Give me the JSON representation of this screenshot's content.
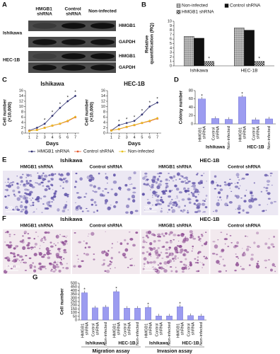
{
  "panel_labels": [
    "A",
    "B",
    "C",
    "D",
    "E",
    "F",
    "G"
  ],
  "blot": {
    "columns": [
      "HMGB1 shRNA",
      "Control shRNA",
      "Non-infected"
    ],
    "rows": [
      {
        "cell_line": "Ishikawa",
        "bands": [
          "HMGB1",
          "GAPDH"
        ]
      },
      {
        "cell_line": "HEC-1B",
        "bands": [
          "HMGB1",
          "GAPDH"
        ]
      }
    ]
  },
  "chart_data": [
    {
      "type": "bar",
      "ylabel": "Relative quantification (RQ)",
      "categories": [
        "Ishikawa",
        "HEC-1B"
      ],
      "series": [
        {
          "name": "Non-infected",
          "color": "#9a9a9a",
          "pattern": "grid",
          "values": [
            6.6,
            8.5
          ]
        },
        {
          "name": "Control shRNA",
          "color": "#111111",
          "values": [
            6.2,
            8.0
          ]
        },
        {
          "name": "HMGB1 shRNA",
          "color": "#111111",
          "pattern": "check",
          "values": [
            1.0,
            1.0
          ],
          "significance": [
            "*",
            "*"
          ]
        }
      ],
      "ylim": [
        0,
        10
      ],
      "yticks": [
        0,
        1,
        2,
        3,
        4,
        5,
        6,
        7,
        8,
        9,
        10
      ]
    },
    {
      "type": "line",
      "xlabel": "Days",
      "ylabel": "Cell number (×10,000)",
      "x": [
        1,
        2,
        3,
        4,
        5,
        6,
        7
      ],
      "xlim": [
        0.5,
        7.5
      ],
      "xticks": [
        1,
        2,
        3,
        4,
        5,
        6,
        7
      ],
      "ylim": [
        0,
        16
      ],
      "yticks": [
        0,
        2,
        4,
        6,
        8,
        10,
        12,
        14,
        16
      ],
      "series": [
        {
          "name": "HMGB1 shRNA",
          "color": "#2f3070",
          "marker": "diamond"
        },
        {
          "name": "Control shRNA",
          "color": "#e2572b",
          "marker": "square"
        },
        {
          "name": "Non-infected",
          "color": "#e8c21e",
          "marker": "triangle"
        }
      ],
      "subplots": [
        {
          "title": "Ishikawa",
          "lines": [
            {
              "values": [
                1.0,
                2.0,
                3.5,
                6.5,
                9.5,
                12.0,
                14.0
              ],
              "significance": [
                null,
                null,
                "*",
                "*",
                "*",
                "*",
                "*"
              ]
            },
            {
              "values": [
                0.8,
                1.2,
                2.0,
                2.8,
                3.5,
                4.5,
                6.0
              ]
            },
            {
              "values": [
                0.8,
                1.2,
                2.0,
                2.9,
                3.6,
                4.7,
                6.2
              ]
            }
          ]
        },
        {
          "title": "HEC-1B",
          "lines": [
            {
              "values": [
                1.0,
                3.0,
                3.8,
                4.6,
                7.0,
                10.0,
                11.5
              ],
              "significance": [
                null,
                "*",
                "*",
                "*",
                "*",
                "*",
                "*"
              ]
            },
            {
              "values": [
                1.0,
                1.5,
                2.3,
                3.0,
                3.8,
                4.5,
                5.5
              ]
            },
            {
              "values": [
                1.0,
                1.6,
                2.4,
                3.1,
                3.9,
                4.7,
                5.7
              ]
            }
          ]
        }
      ]
    },
    {
      "type": "bar",
      "ylabel": "Colony number",
      "categories": [
        "HMGB1 shRNA",
        "Control shRNA",
        "Non-infected",
        "HMGB1 shRNA",
        "Control shRNA",
        "Non-infected"
      ],
      "groups": [
        "Ishikawa",
        "HEC-1B"
      ],
      "values": [
        60,
        13,
        11,
        65,
        10,
        12
      ],
      "significance": [
        "*",
        null,
        null,
        "*",
        null,
        null
      ],
      "color": "#9c9cf0",
      "ylim": [
        0,
        80
      ],
      "yticks": [
        0,
        20,
        40,
        60,
        80
      ]
    },
    {
      "type": "bar",
      "ylabel": "Cell number",
      "categories": [
        "HMGB1 shRNA",
        "Control shRNA",
        "Non-infected",
        "HMGB1 shRNA",
        "Control shRNA",
        "Non-infected",
        "HMGB1 shRNA",
        "Control shRNA",
        "Non-infected",
        "HMGB1 shRNA",
        "Control shRNA",
        "Non-infected"
      ],
      "groups": [
        "Ishikawa",
        "HEC-1B",
        "Ishikawa",
        "HEC-1B"
      ],
      "supergroups": [
        "Migration assay",
        "Invasion assay"
      ],
      "values": [
        370,
        165,
        175,
        385,
        160,
        160,
        170,
        55,
        55,
        180,
        60,
        55
      ],
      "significance": [
        "*",
        null,
        null,
        "*",
        null,
        null,
        "*",
        null,
        null,
        "*",
        null,
        null
      ],
      "color": "#9c9cf0",
      "ylim": [
        0,
        500
      ],
      "yticks": [
        0,
        50,
        100,
        150,
        200,
        250,
        300,
        350,
        400,
        450,
        500
      ]
    }
  ],
  "micrographs": [
    {
      "groups": [
        "Ishikawa",
        "HEC-1B"
      ],
      "images": [
        "HMGB1 shRNA",
        "Control shRNA",
        "HMGB1 shRNA",
        "Control shRNA"
      ],
      "scale_bar": "200 μm"
    },
    {
      "groups": [
        "Ishikawa",
        "HEC-1B"
      ],
      "images": [
        "HMGB1 shRNA",
        "Control shRNA",
        "HMGB1 shRNA",
        "Control shRNA"
      ],
      "scale_bar": "200 μm"
    }
  ]
}
